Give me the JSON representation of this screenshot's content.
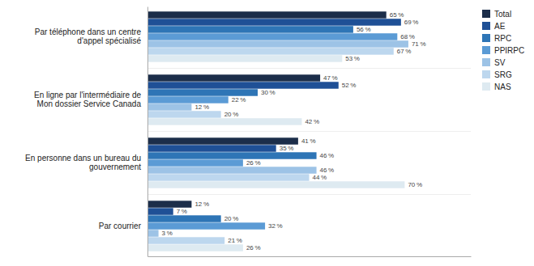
{
  "chart_data": {
    "type": "bar",
    "orientation": "horizontal",
    "categories": [
      "Par téléphone dans un centre\nd'appel spécialisé",
      "En ligne par l'intermédiaire de\nMon dossier Service Canada",
      "En personne dans un bureau du\ngouvernement",
      "Par courrier"
    ],
    "series": [
      {
        "name": "Total",
        "color": "#1c2e4a",
        "values": [
          65,
          47,
          41,
          12
        ],
        "value_labels": [
          "65 %",
          "47 %",
          "41 %",
          "12 %"
        ]
      },
      {
        "name": "AE",
        "color": "#1f5096",
        "values": [
          69,
          52,
          35,
          7
        ],
        "value_labels": [
          "69 %",
          "52 %",
          "35 %",
          "7 %"
        ]
      },
      {
        "name": "RPC",
        "color": "#2e75b6",
        "values": [
          56,
          30,
          46,
          20
        ],
        "value_labels": [
          "56 %",
          "30 %",
          "46 %",
          "20 %"
        ]
      },
      {
        "name": "PPIRPC",
        "color": "#5b9bd5",
        "values": [
          68,
          22,
          26,
          32
        ],
        "value_labels": [
          "68 %",
          "22 %",
          "26 %",
          "32 %"
        ]
      },
      {
        "name": "SV",
        "color": "#9dc3e6",
        "values": [
          71,
          12,
          46,
          3
        ],
        "value_labels": [
          "71 %",
          "12 %",
          "46 %",
          "3 %"
        ]
      },
      {
        "name": "SRG",
        "color": "#bdd7ee",
        "values": [
          67,
          20,
          44,
          21
        ],
        "value_labels": [
          "67 %",
          "20 %",
          "44 %",
          "21 %"
        ]
      },
      {
        "name": "NAS",
        "color": "#deeaf1",
        "values": [
          53,
          42,
          70,
          26
        ],
        "value_labels": [
          "53 %",
          "42 %",
          "70 %",
          "26 %"
        ]
      }
    ],
    "xlim": [
      0,
      88
    ],
    "grid": false,
    "legend": "upper right",
    "data_labels": true,
    "tick_labels": "y"
  }
}
